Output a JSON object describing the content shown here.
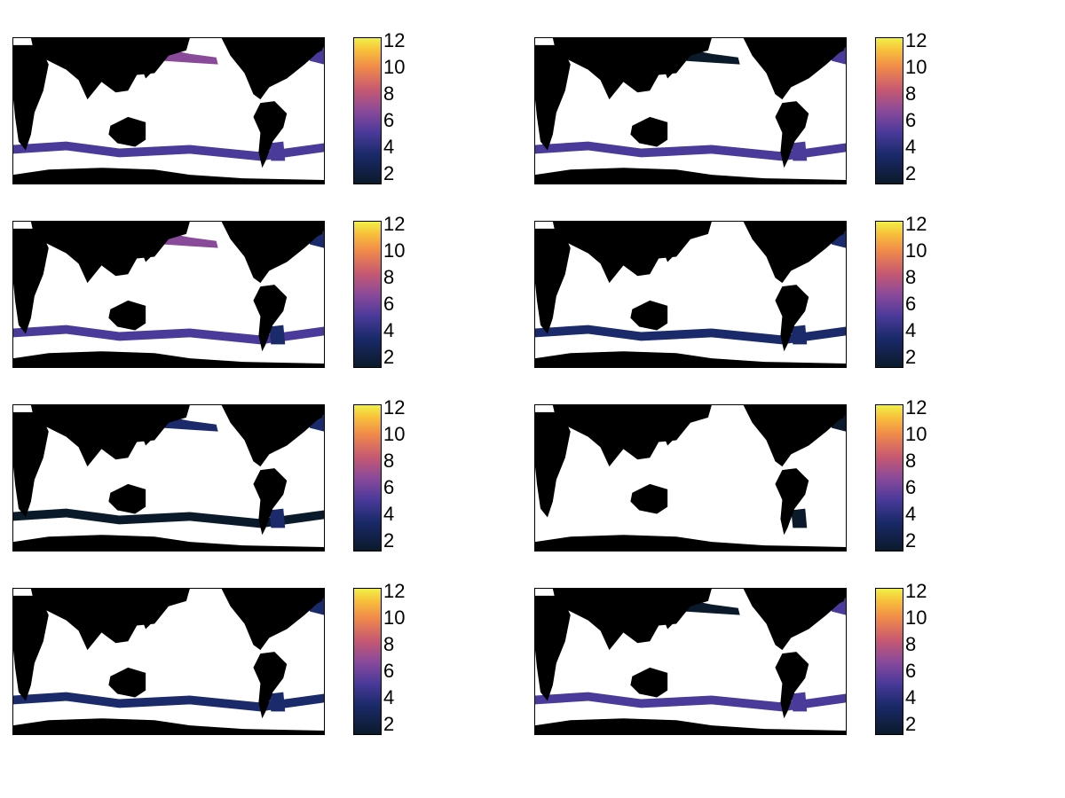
{
  "chart_data": {
    "type": "heatmap",
    "colorbar": {
      "ticks": [
        "2",
        "4",
        "6",
        "8",
        "10",
        "12"
      ],
      "tick_values": [
        2,
        4,
        6,
        8,
        10,
        12
      ],
      "range": [
        1.2,
        12.3
      ],
      "colormap": [
        "#0b1a2a",
        "#1a2a6a",
        "#4a3a9a",
        "#8a4a9a",
        "#c85a70",
        "#f08a4a",
        "#f7c23a",
        "#f0f048"
      ]
    },
    "panels": [
      {
        "id": "p1",
        "southern_band_intensity": 0.35,
        "north_pacific_intensity": 0.45,
        "atlantic_intensity": 0.25
      },
      {
        "id": "p2",
        "southern_band_intensity": 0.3,
        "north_pacific_intensity": 0.05,
        "atlantic_intensity": 0.3
      },
      {
        "id": "p3",
        "southern_band_intensity": 0.3,
        "north_pacific_intensity": 0.4,
        "atlantic_intensity": 0.2
      },
      {
        "id": "p4",
        "southern_band_intensity": 0.12,
        "north_pacific_intensity": 0.0,
        "atlantic_intensity": 0.1
      },
      {
        "id": "p5",
        "southern_band_intensity": 0.05,
        "north_pacific_intensity": 0.2,
        "atlantic_intensity": 0.1
      },
      {
        "id": "p6",
        "southern_band_intensity": 0.0,
        "north_pacific_intensity": 0.0,
        "atlantic_intensity": 0.05
      },
      {
        "id": "p7",
        "southern_band_intensity": 0.08,
        "north_pacific_intensity": 0.0,
        "atlantic_intensity": 0.1
      },
      {
        "id": "p8",
        "southern_band_intensity": 0.28,
        "north_pacific_intensity": 0.05,
        "atlantic_intensity": 0.25
      }
    ]
  }
}
